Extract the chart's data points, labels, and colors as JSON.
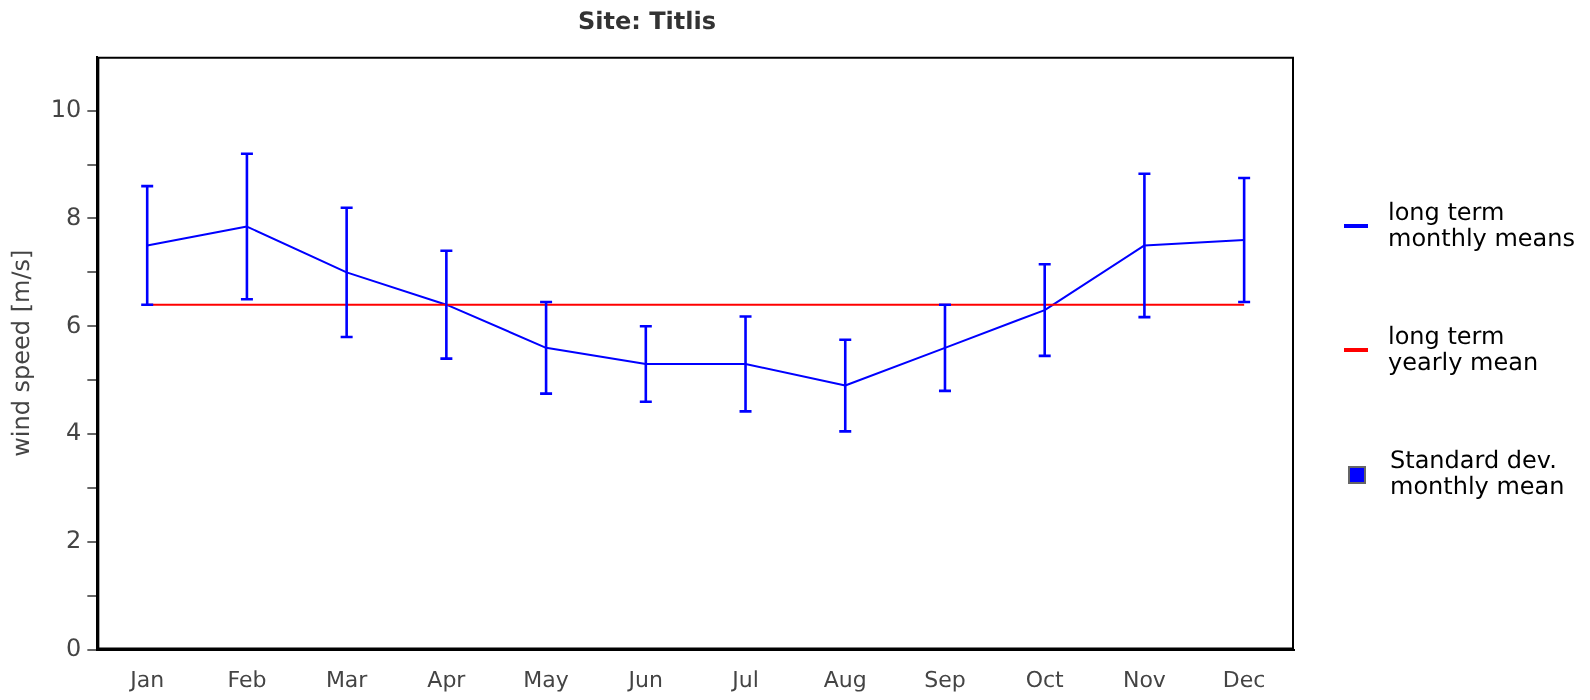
{
  "chart_data": {
    "type": "line",
    "title": "Site: Titlis",
    "ylabel": "wind speed [m/s]",
    "categories": [
      "Jan",
      "Feb",
      "Mar",
      "Apr",
      "May",
      "Jun",
      "Jul",
      "Aug",
      "Sep",
      "Oct",
      "Nov",
      "Dec"
    ],
    "series": [
      {
        "name": "long term monthly means",
        "color": "#0000ff",
        "values": [
          7.5,
          7.85,
          7.0,
          6.4,
          5.6,
          5.3,
          5.3,
          4.9,
          5.6,
          6.3,
          7.5,
          7.6
        ],
        "errors": [
          1.1,
          1.35,
          1.2,
          1.0,
          0.85,
          0.7,
          0.88,
          0.85,
          0.8,
          0.85,
          1.33,
          1.15
        ]
      }
    ],
    "ref_lines": [
      {
        "axis": "y",
        "value": 6.4,
        "label": "long term yearly mean",
        "color": "#ff0000"
      }
    ],
    "annotations": [
      "Standard dev. monthly mean"
    ],
    "ylim": [
      0,
      11
    ],
    "yticks": [
      0,
      {
        "value": 1,
        "label": null
      },
      2,
      {
        "value": 3,
        "label": null
      },
      4,
      {
        "value": 5,
        "label": null
      },
      6,
      {
        "value": 7,
        "label": null
      },
      8,
      {
        "value": 9,
        "label": null
      },
      10
    ],
    "grid": false,
    "legend": "right",
    "marker": "none",
    "line_style": "solid"
  }
}
